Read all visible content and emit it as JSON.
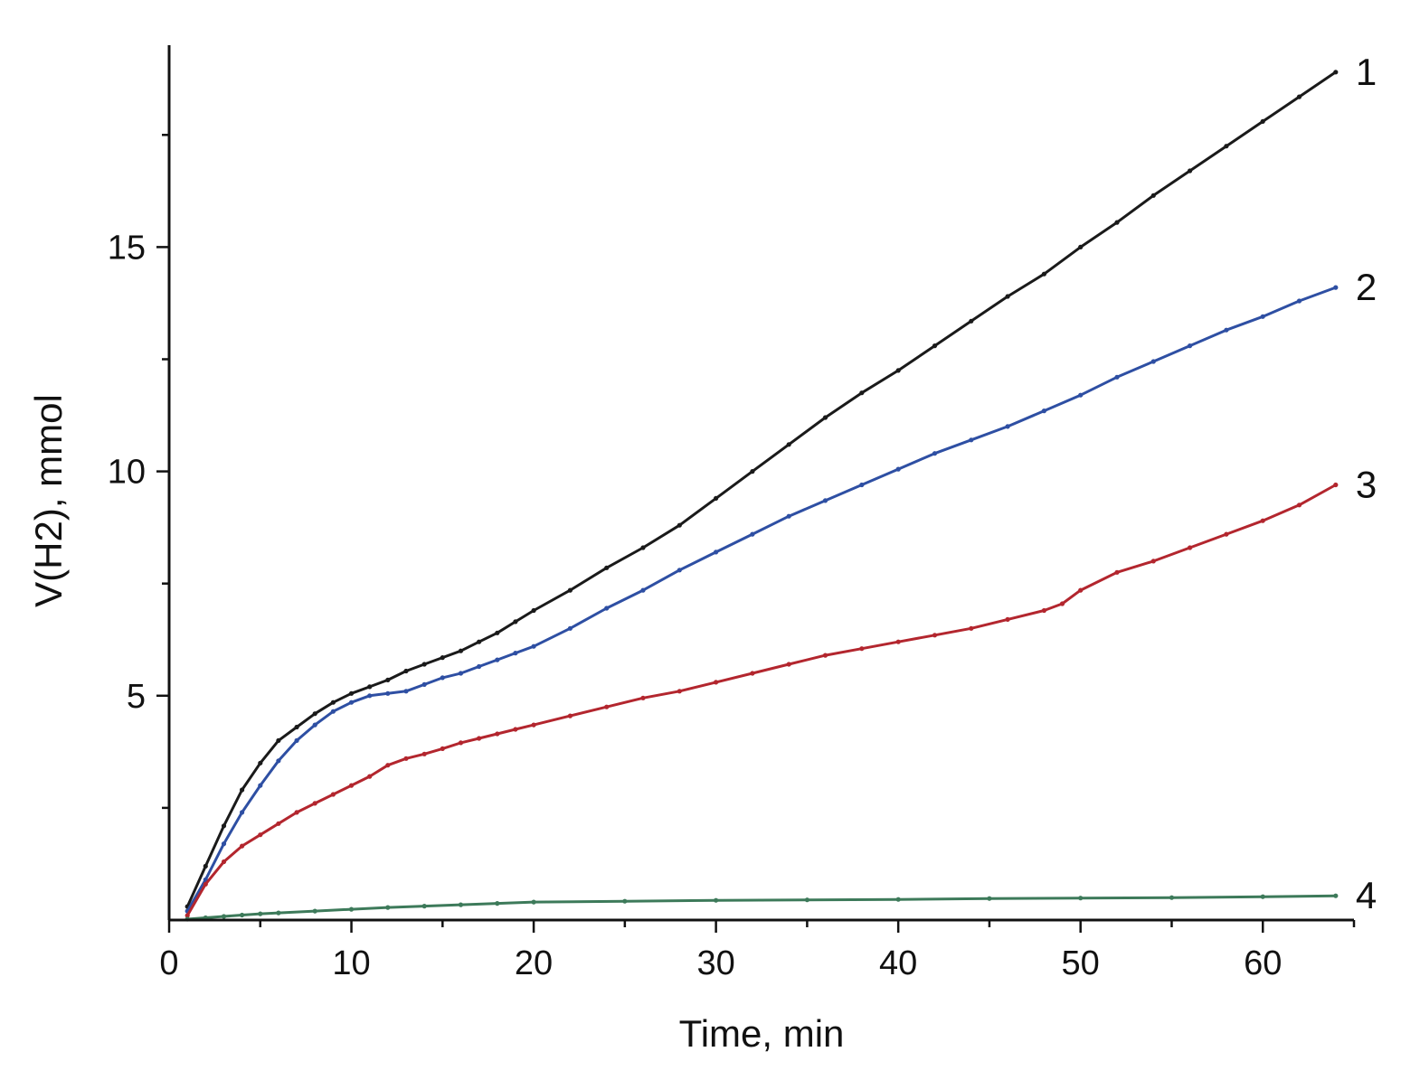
{
  "chart_data": {
    "type": "line",
    "title": "",
    "xlabel": "Time, min",
    "ylabel": "V(H2), mmol",
    "xlim": [
      0,
      65
    ],
    "ylim": [
      0,
      19.5
    ],
    "xticks_major": [
      0,
      10,
      20,
      30,
      40,
      50,
      60
    ],
    "xticks_minor": [
      5,
      15,
      25,
      35,
      45,
      55,
      65
    ],
    "yticks_major": [
      5,
      10,
      15
    ],
    "yticks_minor": [
      2.5,
      7.5,
      12.5,
      17.5
    ],
    "grid": false,
    "legend": "none",
    "series": [
      {
        "label": "1",
        "color": "#1a1a1a",
        "x": [
          1,
          2,
          3,
          4,
          5,
          6,
          7,
          8,
          9,
          10,
          11,
          12,
          13,
          14,
          15,
          16,
          17,
          18,
          19,
          20,
          22,
          24,
          26,
          28,
          30,
          32,
          34,
          36,
          38,
          40,
          42,
          44,
          46,
          48,
          50,
          52,
          54,
          56,
          58,
          60,
          62,
          64
        ],
        "y": [
          0.3,
          1.2,
          2.1,
          2.9,
          3.5,
          4.0,
          4.3,
          4.6,
          4.85,
          5.05,
          5.2,
          5.35,
          5.55,
          5.7,
          5.85,
          6.0,
          6.2,
          6.4,
          6.65,
          6.9,
          7.35,
          7.85,
          8.3,
          8.8,
          9.4,
          10.0,
          10.6,
          11.2,
          11.75,
          12.25,
          12.8,
          13.35,
          13.9,
          14.4,
          15.0,
          15.55,
          16.15,
          16.7,
          17.25,
          17.8,
          18.35,
          18.9
        ]
      },
      {
        "label": "2",
        "color": "#2e4fa3",
        "x": [
          1,
          2,
          3,
          4,
          5,
          6,
          7,
          8,
          9,
          10,
          11,
          12,
          13,
          14,
          15,
          16,
          17,
          18,
          19,
          20,
          22,
          24,
          26,
          28,
          30,
          32,
          34,
          36,
          38,
          40,
          42,
          44,
          46,
          48,
          50,
          52,
          54,
          56,
          58,
          60,
          62,
          64
        ],
        "y": [
          0.2,
          0.9,
          1.7,
          2.4,
          3.0,
          3.55,
          4.0,
          4.35,
          4.65,
          4.85,
          5.0,
          5.05,
          5.1,
          5.25,
          5.4,
          5.5,
          5.65,
          5.8,
          5.95,
          6.1,
          6.5,
          6.95,
          7.35,
          7.8,
          8.2,
          8.6,
          9.0,
          9.35,
          9.7,
          10.05,
          10.4,
          10.7,
          11.0,
          11.35,
          11.7,
          12.1,
          12.45,
          12.8,
          13.15,
          13.45,
          13.8,
          14.1
        ]
      },
      {
        "label": "3",
        "color": "#b3262e",
        "x": [
          1,
          2,
          3,
          4,
          5,
          6,
          7,
          8,
          9,
          10,
          11,
          12,
          13,
          14,
          15,
          16,
          17,
          18,
          19,
          20,
          22,
          24,
          26,
          28,
          30,
          32,
          34,
          36,
          38,
          40,
          42,
          44,
          46,
          48,
          49,
          50,
          52,
          54,
          56,
          58,
          60,
          62,
          64
        ],
        "y": [
          0.1,
          0.8,
          1.3,
          1.65,
          1.9,
          2.15,
          2.4,
          2.6,
          2.8,
          3.0,
          3.2,
          3.45,
          3.6,
          3.7,
          3.82,
          3.95,
          4.05,
          4.15,
          4.25,
          4.35,
          4.55,
          4.75,
          4.95,
          5.1,
          5.3,
          5.5,
          5.7,
          5.9,
          6.05,
          6.2,
          6.35,
          6.5,
          6.7,
          6.9,
          7.05,
          7.35,
          7.75,
          8.0,
          8.3,
          8.6,
          8.9,
          9.25,
          9.7
        ]
      },
      {
        "label": "4",
        "color": "#3d7a5a",
        "x": [
          1,
          2,
          3,
          4,
          5,
          6,
          8,
          10,
          12,
          14,
          16,
          18,
          20,
          25,
          30,
          35,
          40,
          45,
          50,
          55,
          60,
          64
        ],
        "y": [
          0.02,
          0.05,
          0.08,
          0.11,
          0.14,
          0.16,
          0.2,
          0.24,
          0.28,
          0.31,
          0.34,
          0.37,
          0.4,
          0.42,
          0.44,
          0.45,
          0.46,
          0.48,
          0.49,
          0.5,
          0.52,
          0.54
        ]
      }
    ]
  }
}
